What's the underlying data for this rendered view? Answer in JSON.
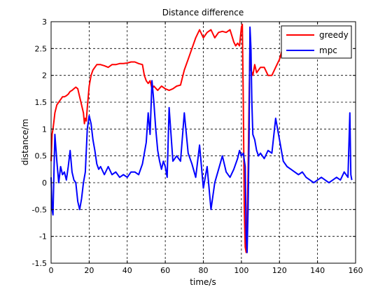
{
  "chart_data": {
    "type": "line",
    "title": "Distance difference",
    "xlabel": "time/s",
    "ylabel": "distance/m",
    "xlim": [
      0,
      160
    ],
    "ylim": [
      -1.5,
      3
    ],
    "xticks": [
      0,
      20,
      40,
      60,
      80,
      100,
      120,
      140,
      160
    ],
    "yticks": [
      -1.5,
      -1,
      -0.5,
      0,
      0.5,
      1,
      1.5,
      2,
      2.5,
      3
    ],
    "grid": true,
    "legend_position": "top-right",
    "series": [
      {
        "name": "greedy",
        "color": "#ff0000",
        "x": [
          0,
          0.5,
          1,
          1.5,
          2,
          3,
          4,
          5,
          6,
          7,
          8,
          9,
          10,
          11,
          12,
          13,
          14,
          15,
          16,
          17,
          17.5,
          18,
          18.5,
          19,
          20,
          21,
          22,
          24,
          26,
          28,
          30,
          32,
          34,
          36,
          38,
          40,
          42,
          44,
          46,
          48,
          49,
          50,
          51,
          52,
          53,
          54,
          56,
          58,
          60,
          62,
          64,
          66,
          68,
          70,
          72,
          74,
          76,
          78,
          80,
          82,
          84,
          86,
          88,
          90,
          92,
          94,
          96,
          97,
          98,
          99,
          100,
          100.5,
          101,
          101.5,
          102,
          102.5,
          103,
          103.5,
          104,
          104.5,
          105,
          106,
          107,
          108,
          110,
          112,
          114,
          116,
          118,
          120,
          122
        ],
        "y": [
          0.4,
          0.9,
          1.0,
          1.15,
          1.3,
          1.45,
          1.5,
          1.55,
          1.6,
          1.6,
          1.62,
          1.65,
          1.7,
          1.72,
          1.75,
          1.78,
          1.75,
          1.6,
          1.45,
          1.3,
          1.1,
          1.2,
          1.15,
          1.4,
          1.8,
          2.0,
          2.1,
          2.2,
          2.2,
          2.18,
          2.15,
          2.2,
          2.2,
          2.22,
          2.22,
          2.23,
          2.25,
          2.25,
          2.22,
          2.2,
          2.0,
          1.9,
          1.85,
          1.9,
          1.75,
          1.8,
          1.72,
          1.8,
          1.75,
          1.72,
          1.75,
          1.8,
          1.82,
          2.1,
          2.3,
          2.5,
          2.7,
          2.85,
          2.7,
          2.8,
          2.85,
          2.7,
          2.8,
          2.82,
          2.8,
          2.85,
          2.62,
          2.55,
          2.6,
          2.55,
          2.9,
          2.95,
          1.5,
          -0.5,
          -1.2,
          -1.3,
          -0.8,
          0.2,
          1.5,
          2.5,
          2.1,
          2.0,
          2.2,
          2.05,
          2.15,
          2.15,
          2.0,
          2.0,
          2.15,
          2.3,
          2.55
        ]
      },
      {
        "name": "mpc",
        "color": "#0000ff",
        "x": [
          0,
          0.5,
          1,
          1.5,
          2,
          3,
          4,
          5,
          6,
          7,
          8,
          9,
          10,
          11,
          12,
          13,
          14,
          15,
          16,
          17,
          18,
          19,
          20,
          21,
          22,
          23,
          24,
          25,
          26,
          28,
          30,
          32,
          34,
          36,
          38,
          40,
          42,
          44,
          46,
          48,
          50,
          51,
          52,
          53,
          54,
          55,
          56,
          57,
          58,
          59,
          60,
          61,
          62,
          64,
          66,
          68,
          70,
          72,
          74,
          76,
          78,
          80,
          82,
          84,
          86,
          88,
          90,
          92,
          94,
          96,
          98,
          99,
          100,
          101,
          102,
          102.5,
          103,
          103.5,
          104,
          104.5,
          105,
          105.5,
          106,
          107,
          108,
          109,
          110,
          112,
          114,
          116,
          118,
          120,
          122,
          124,
          126,
          128,
          130,
          132,
          134,
          136,
          138,
          140,
          142,
          144,
          146,
          148,
          150,
          152,
          154,
          156,
          157,
          157.5,
          158
        ],
        "y": [
          0.1,
          -0.5,
          -0.6,
          0.2,
          0.9,
          0.4,
          0.0,
          0.3,
          0.15,
          0.2,
          0.05,
          0.3,
          0.6,
          0.2,
          0.05,
          0.0,
          -0.35,
          -0.5,
          -0.3,
          0.0,
          0.2,
          1.0,
          1.25,
          1.1,
          0.8,
          0.6,
          0.35,
          0.25,
          0.3,
          0.15,
          0.3,
          0.15,
          0.2,
          0.1,
          0.15,
          0.1,
          0.2,
          0.2,
          0.15,
          0.35,
          0.75,
          1.3,
          0.9,
          1.9,
          1.5,
          1.0,
          0.6,
          0.4,
          0.25,
          0.4,
          0.3,
          0.1,
          1.4,
          0.4,
          0.5,
          0.4,
          1.3,
          0.55,
          0.35,
          0.1,
          0.7,
          -0.1,
          0.3,
          -0.5,
          0.0,
          0.25,
          0.5,
          0.2,
          0.1,
          0.25,
          0.45,
          0.6,
          0.5,
          0.55,
          0.3,
          -1.0,
          -1.3,
          -0.5,
          0.8,
          2.9,
          2.5,
          1.5,
          0.9,
          0.8,
          0.6,
          0.5,
          0.55,
          0.45,
          0.6,
          0.55,
          1.2,
          0.8,
          0.4,
          0.3,
          0.25,
          0.2,
          0.15,
          0.2,
          0.1,
          0.05,
          0.0,
          0.05,
          0.1,
          0.05,
          0.0,
          0.05,
          0.1,
          0.05,
          0.2,
          0.1,
          1.3,
          0.15,
          0.05
        ]
      }
    ]
  }
}
